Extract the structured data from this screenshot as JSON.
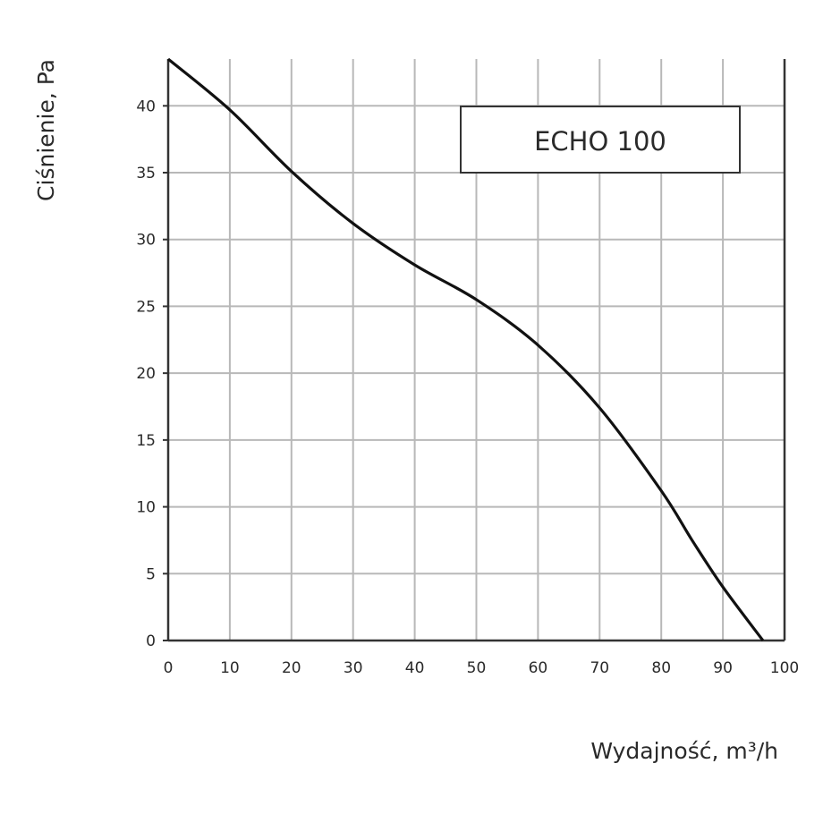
{
  "chart_data": {
    "type": "line",
    "xlabel": "Wydajność, m³/h",
    "ylabel": "Ciśnienie, Pa",
    "xlim": [
      0,
      100
    ],
    "ylim": [
      0,
      43.5
    ],
    "x_ticks": [
      0,
      10,
      20,
      30,
      40,
      50,
      60,
      70,
      80,
      90,
      100
    ],
    "y_ticks": [
      0,
      5,
      10,
      15,
      20,
      25,
      30,
      35,
      40
    ],
    "grid": true,
    "legend": {
      "label": "ECHO 100",
      "placement": "top-right"
    },
    "series": [
      {
        "name": "ECHO 100",
        "color": "#111111",
        "x": [
          0,
          10,
          20,
          30,
          40,
          50,
          60,
          70,
          80,
          85,
          90,
          96.5
        ],
        "y": [
          43.5,
          39.7,
          35.1,
          31.2,
          28.1,
          25.5,
          22.1,
          17.4,
          11.2,
          7.5,
          4.0,
          0
        ]
      }
    ]
  }
}
